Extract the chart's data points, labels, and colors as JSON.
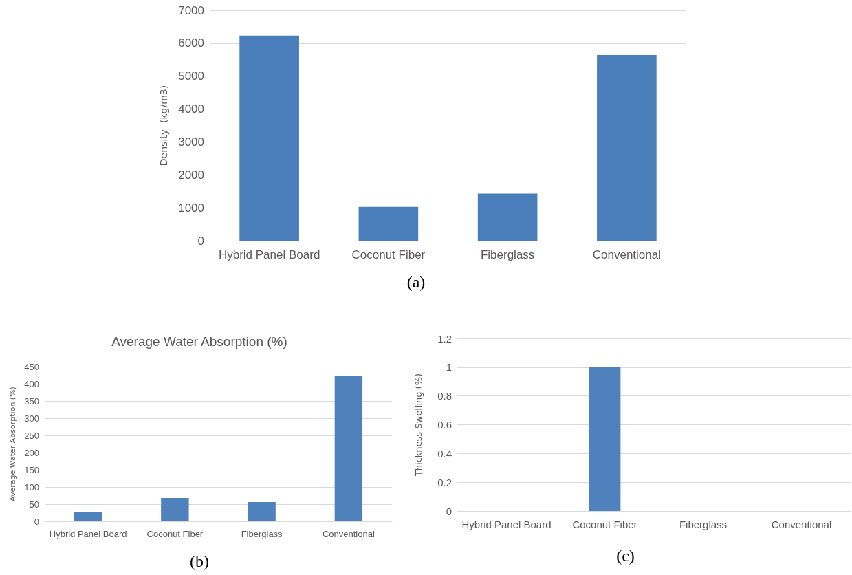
{
  "chart_data": [
    {
      "type": "bar",
      "ylabel": "Density  (kg/m3)",
      "categories": [
        "Hybrid Panel Board",
        "Coconut Fiber",
        "Fiberglass",
        "Conventional"
      ],
      "values": [
        6230,
        1030,
        1430,
        5640
      ],
      "color": "#4a7ebb",
      "ylim": [
        0,
        7000
      ],
      "yticks": [
        0,
        1000,
        2000,
        3000,
        4000,
        5000,
        6000,
        7000
      ],
      "grid": "y",
      "annotations": [
        "(a)"
      ]
    },
    {
      "type": "bar",
      "title": "Average Water Absorption (%)",
      "ylabel": "Average Water Absorption (%)",
      "categories": [
        "Hybrid Panel Board",
        "Coconut Fiber",
        "Fiberglass",
        "Conventional"
      ],
      "values": [
        26,
        68,
        56,
        423
      ],
      "color": "#4f81bd",
      "ylim": [
        0,
        450
      ],
      "yticks": [
        0,
        50,
        100,
        150,
        200,
        250,
        300,
        350,
        400,
        450
      ],
      "grid": "y",
      "annotations": [
        "(b)"
      ]
    },
    {
      "type": "bar",
      "ylabel": "Thickness Swelling (%)",
      "categories": [
        "Hybrid Panel Board",
        "Coconut Fiber",
        "Fiberglass",
        "Conventional"
      ],
      "values": [
        0,
        1,
        0,
        0
      ],
      "color": "#4f81bd",
      "ylim": [
        0,
        1.2
      ],
      "yticks": [
        0,
        0.2,
        0.4,
        0.6,
        0.8,
        1,
        1.2
      ],
      "grid": "y",
      "annotations": [
        "(c)"
      ]
    }
  ]
}
